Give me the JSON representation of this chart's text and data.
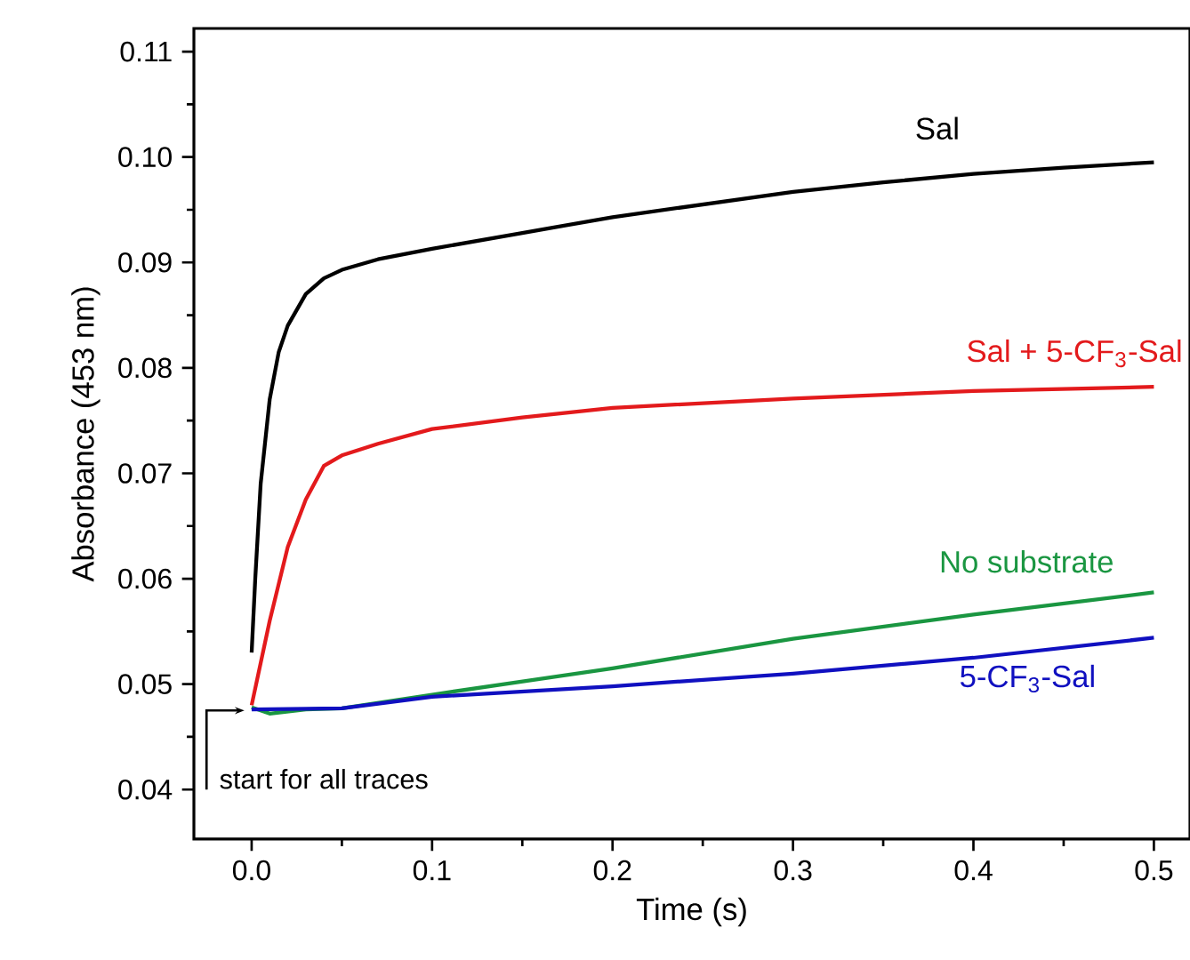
{
  "chart_data": {
    "type": "line",
    "xlabel": "Time (s)",
    "ylabel": "Absorbance (453 nm)",
    "xlim": [
      -0.032,
      0.52
    ],
    "ylim": [
      0.0353,
      0.1122
    ],
    "xticks": [
      {
        "value": 0,
        "label": "0.0"
      },
      0.1,
      0.2,
      0.3,
      0.4,
      0.5
    ],
    "yticks": [
      0.04,
      0.05,
      0.06,
      0.07,
      0.08,
      0.09,
      {
        "value": 0.1,
        "label": "0.10"
      },
      0.11
    ],
    "grid": false,
    "legend": false,
    "marker": "none",
    "line_style": "solid",
    "annotations": [
      {
        "text": "start for all traces",
        "x": 0,
        "y": 0.0475
      }
    ],
    "series": [
      {
        "name": "Sal",
        "color": "#000000",
        "x": [
          0,
          0.002,
          0.005,
          0.01,
          0.015,
          0.02,
          0.03,
          0.04,
          0.05,
          0.07,
          0.1,
          0.15,
          0.2,
          0.25,
          0.3,
          0.35,
          0.4,
          0.45,
          0.5
        ],
        "values": [
          0.053,
          0.06,
          0.069,
          0.077,
          0.0815,
          0.084,
          0.087,
          0.0885,
          0.0893,
          0.0903,
          0.0913,
          0.0928,
          0.0943,
          0.0955,
          0.0967,
          0.0976,
          0.0984,
          0.099,
          0.0995
        ]
      },
      {
        "name": "Sal + 5-CF$_{3}$-Sal",
        "color": "#e31a1c",
        "x": [
          0,
          0.01,
          0.02,
          0.03,
          0.04,
          0.05,
          0.07,
          0.1,
          0.15,
          0.2,
          0.3,
          0.4,
          0.5
        ],
        "values": [
          0.048,
          0.056,
          0.063,
          0.0675,
          0.0707,
          0.0717,
          0.0728,
          0.0742,
          0.0753,
          0.0762,
          0.0771,
          0.0778,
          0.0782
        ]
      },
      {
        "name": "No substrate",
        "color": "#1a9641",
        "x": [
          0,
          0.01,
          0.03,
          0.05,
          0.1,
          0.2,
          0.3,
          0.4,
          0.5
        ],
        "values": [
          0.0478,
          0.0472,
          0.0476,
          0.0477,
          0.049,
          0.0515,
          0.0543,
          0.0566,
          0.0587
        ]
      },
      {
        "name": "5-CF$_{3}$-Sal",
        "color": "#1010c0",
        "x": [
          0,
          0.05,
          0.1,
          0.2,
          0.3,
          0.4,
          0.5
        ],
        "values": [
          0.0476,
          0.0477,
          0.0488,
          0.0498,
          0.051,
          0.0525,
          0.0544
        ]
      }
    ]
  }
}
